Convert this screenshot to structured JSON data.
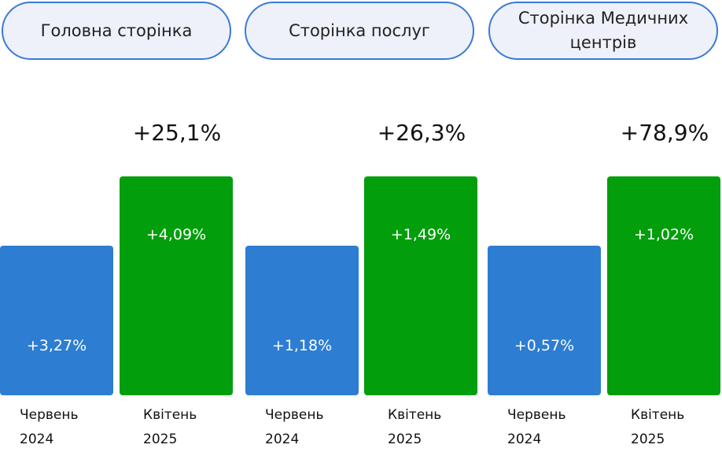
{
  "panels": [
    {
      "title": "Головна сторінка",
      "growth": "+25,1%",
      "bars": [
        {
          "value_label": "+3,27%",
          "period": "Червень 2024"
        },
        {
          "value_label": "+4,09%",
          "period": "Квітень 2025"
        }
      ]
    },
    {
      "title": "Сторінка послуг",
      "growth": "+26,3%",
      "bars": [
        {
          "value_label": "+1,18%",
          "period": "Червень 2024"
        },
        {
          "value_label": "+1,49%",
          "period": "Квітень 2025"
        }
      ]
    },
    {
      "title": "Сторінка Медичних центрів",
      "growth": "+78,9%",
      "bars": [
        {
          "value_label": "+0,57%",
          "period": "Червень 2024"
        },
        {
          "value_label": "+1,02%",
          "period": "Квітень 2025"
        }
      ]
    }
  ]
}
